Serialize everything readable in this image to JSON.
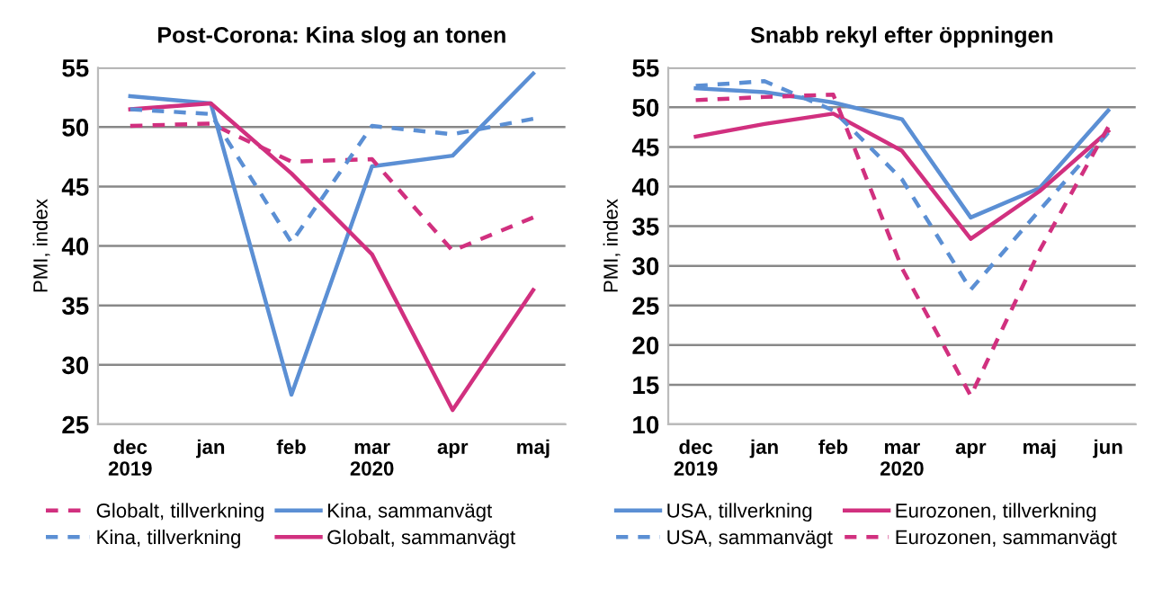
{
  "chart_data": [
    {
      "type": "line",
      "title": "Post-Corona: Kina slog an tonen",
      "ylabel": "PMI, index",
      "categories": [
        "dec\n2019",
        "jan",
        "feb",
        "mar\n2020",
        "apr",
        "maj"
      ],
      "series": [
        {
          "name": "Globalt, tillverkning",
          "color": "#d1307f",
          "line_style": "dashed",
          "values": [
            50.1,
            50.3,
            47.1,
            47.3,
            39.6,
            42.4
          ]
        },
        {
          "name": "Kina, tillverkning",
          "color": "#5b8fd4",
          "line_style": "dashed",
          "values": [
            51.5,
            51.1,
            40.3,
            50.1,
            49.4,
            50.7
          ]
        },
        {
          "name": "Kina, sammanvägt",
          "color": "#5b8fd4",
          "line_style": "solid",
          "values": [
            52.6,
            52.0,
            27.5,
            46.7,
            47.6,
            54.5
          ]
        },
        {
          "name": "Globalt, sammanvägt",
          "color": "#d1307f",
          "line_style": "solid",
          "values": [
            51.5,
            52.0,
            46.1,
            39.3,
            26.2,
            36.3
          ]
        }
      ],
      "ylim": [
        25,
        55
      ],
      "yticks": [
        25,
        30,
        35,
        40,
        45,
        50,
        55
      ],
      "grid": "y",
      "legend": "bottom",
      "marker": "none"
    },
    {
      "type": "line",
      "title": "Snabb rekyl efter öppningen",
      "ylabel": "PMI, index",
      "categories": [
        "dec\n2019",
        "jan",
        "feb",
        "mar\n2020",
        "apr",
        "maj",
        "jun"
      ],
      "series": [
        {
          "name": "USA, tillverkning",
          "color": "#5b8fd4",
          "line_style": "solid",
          "values": [
            52.4,
            51.9,
            50.6,
            48.5,
            36.1,
            39.8,
            49.6
          ]
        },
        {
          "name": "USA, sammanvägt",
          "color": "#5b8fd4",
          "line_style": "dashed",
          "values": [
            52.7,
            53.3,
            49.6,
            40.9,
            27.0,
            37.0,
            46.8
          ]
        },
        {
          "name": "Eurozonen, tillverkning",
          "color": "#d1307f",
          "line_style": "solid",
          "values": [
            46.3,
            47.9,
            49.2,
            44.5,
            33.4,
            39.4,
            47.0
          ]
        },
        {
          "name": "Eurozonen, sammanvägt",
          "color": "#d1307f",
          "line_style": "dashed",
          "values": [
            50.9,
            51.3,
            51.6,
            29.7,
            13.6,
            31.9,
            47.5
          ]
        }
      ],
      "ylim": [
        10,
        55
      ],
      "yticks": [
        10,
        15,
        20,
        25,
        30,
        35,
        40,
        45,
        50,
        55
      ],
      "grid": "y",
      "legend": "bottom",
      "marker": "none"
    }
  ]
}
